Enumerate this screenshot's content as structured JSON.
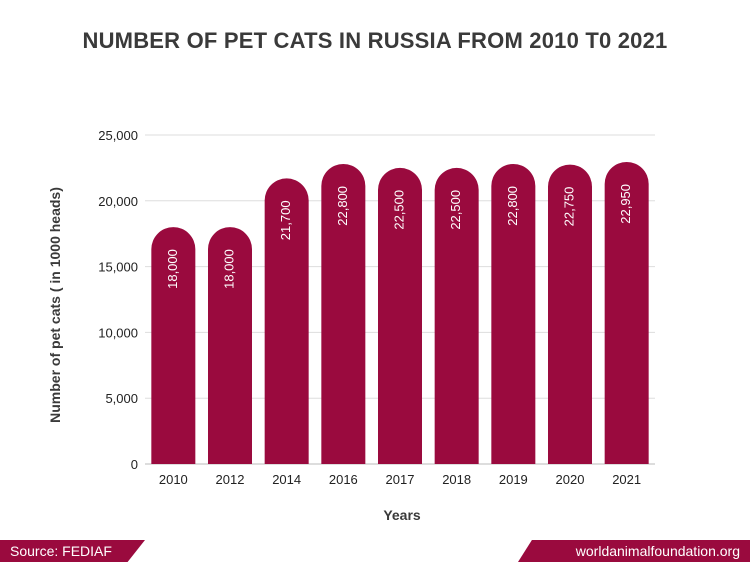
{
  "title": "NUMBER OF PET CATS IN RUSSIA FROM 2010 T0 2021",
  "footer": {
    "source": "Source: FEDIAF",
    "site": "worldanimalfoundation.org"
  },
  "colors": {
    "bar": "#9a0a3e",
    "footer": "#9a0a3e",
    "title": "#3a3a3a",
    "grid": "#dddddd"
  },
  "chart_data": {
    "type": "bar",
    "title": "NUMBER OF PET CATS IN RUSSIA FROM 2010 T0 2021",
    "xlabel": "Years",
    "ylabel": "Number of pet cats ( in 1000 heads)",
    "categories": [
      "2010",
      "2012",
      "2014",
      "2016",
      "2017",
      "2018",
      "2019",
      "2020",
      "2021"
    ],
    "values": [
      18000,
      18000,
      21700,
      22800,
      22500,
      22500,
      22800,
      22750,
      22950
    ],
    "data_labels": [
      "18,000",
      "18,000",
      "21,700",
      "22,800",
      "22,500",
      "22,500",
      "22,800",
      "22,750",
      "22,950"
    ],
    "ylim": [
      0,
      25000
    ],
    "yticks": [
      0,
      5000,
      10000,
      15000,
      20000,
      25000
    ],
    "ytick_labels": [
      "0",
      "5,000",
      "10,000",
      "15,000",
      "20,000",
      "25,000"
    ],
    "grid": true,
    "legend": "none"
  }
}
